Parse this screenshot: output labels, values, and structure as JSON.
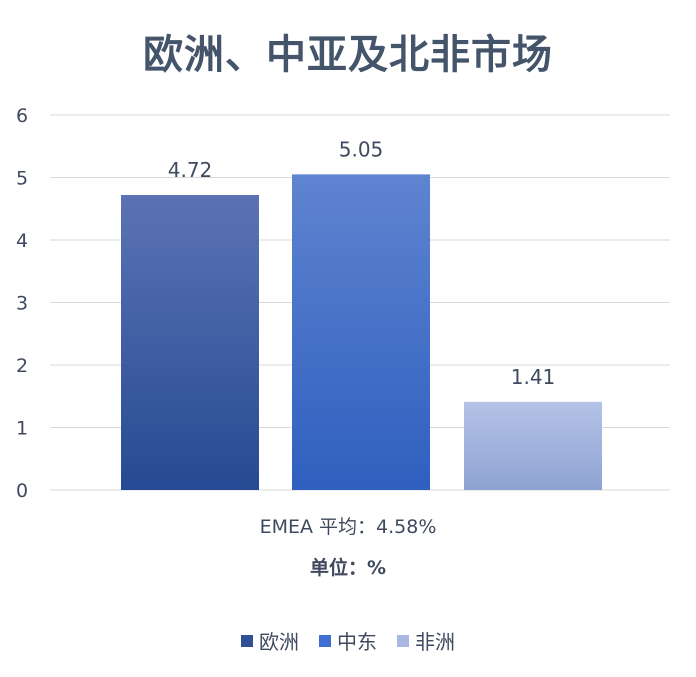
{
  "chart_data": {
    "type": "bar",
    "title": "欧洲、中亚及北非市场",
    "categories": [
      "欧洲",
      "中东",
      "非洲"
    ],
    "values": [
      4.72,
      5.05,
      1.41
    ],
    "data_labels": [
      "4.72",
      "5.05",
      "1.41"
    ],
    "ylim": [
      0,
      6
    ],
    "yticks": [
      "0",
      "1",
      "2",
      "3",
      "4",
      "5",
      "6"
    ],
    "xlabel": "",
    "ylabel": "",
    "grid": true,
    "legend_position": "bottom",
    "series_colors": [
      {
        "top": "#5b73b4",
        "bottom": "#264a93"
      },
      {
        "top": "#5f84d0",
        "bottom": "#2f5fbf"
      },
      {
        "top": "#b4c2e6",
        "bottom": "#8fa3d3"
      }
    ],
    "legend_colors": [
      "#2f4f96",
      "#3f6fd1",
      "#a9b8e2"
    ],
    "notes": {
      "average": "EMEA 平均：4.58%",
      "unit": "单位：%"
    }
  }
}
